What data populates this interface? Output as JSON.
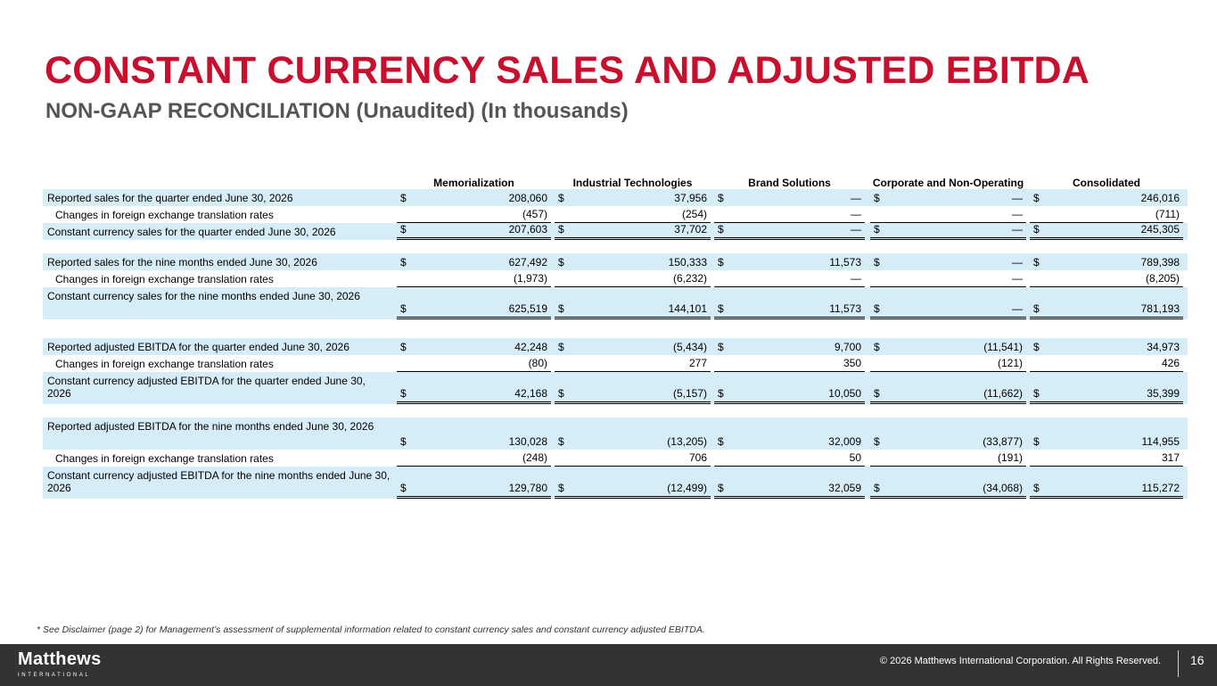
{
  "title": "CONSTANT CURRENCY SALES AND ADJUSTED EBITDA",
  "subtitle": "NON-GAAP RECONCILIATION (Unaudited) (In thousands)",
  "table": {
    "columns": [
      "Memorialization",
      "Industrial Technologies",
      "Brand Solutions",
      "Corporate and Non-Operating",
      "Consolidated"
    ],
    "rows": [
      {
        "label": "Reported sales for the quarter ended June 30, 2026",
        "values": [
          "208,060",
          "37,956",
          "—",
          "—",
          "246,016"
        ]
      },
      {
        "label": "Changes in foreign exchange translation rates",
        "values": [
          "(457)",
          "(254)",
          "—",
          "—",
          "(711)"
        ]
      },
      {
        "label": "Constant currency sales for the quarter ended June 30, 2026",
        "values": [
          "207,603",
          "37,702",
          "—",
          "—",
          "245,305"
        ]
      },
      {
        "label": "Reported sales for the nine months ended June 30, 2026",
        "values": [
          "627,492",
          "150,333",
          "11,573",
          "—",
          "789,398"
        ]
      },
      {
        "label": "Changes in foreign exchange translation rates",
        "values": [
          "(1,973)",
          "(6,232)",
          "—",
          "—",
          "(8,205)"
        ]
      },
      {
        "label": "Constant currency sales for the nine months ended June 30, 2026",
        "values": [
          "625,519",
          "144,101",
          "11,573",
          "—",
          "781,193"
        ]
      },
      {
        "label": "Reported adjusted EBITDA for the quarter ended June 30, 2026",
        "values": [
          "42,248",
          "(5,434)",
          "9,700",
          "(11,541)",
          "34,973"
        ]
      },
      {
        "label": "Changes in foreign exchange translation rates",
        "values": [
          "(80)",
          "277",
          "350",
          "(121)",
          "426"
        ]
      },
      {
        "label": "Constant currency adjusted EBITDA for the quarter ended June 30, 2026",
        "values": [
          "42,168",
          "(5,157)",
          "10,050",
          "(11,662)",
          "35,399"
        ]
      },
      {
        "label": "Reported adjusted EBITDA for the nine months ended June 30, 2026",
        "values": [
          "130,028",
          "(13,205)",
          "32,009",
          "(33,877)",
          "114,955"
        ]
      },
      {
        "label": "Changes in foreign exchange translation rates",
        "values": [
          "(248)",
          "706",
          "50",
          "(191)",
          "317"
        ]
      },
      {
        "label": "Constant currency adjusted EBITDA for the nine months ended June 30, 2026",
        "values": [
          "129,780",
          "(12,499)",
          "32,059",
          "(34,068)",
          "115,272"
        ]
      }
    ]
  },
  "currency_symbol": "$",
  "footnote": "* See Disclaimer (page 2) for Management’s assessment of supplemental information related to constant currency sales and constant currency adjusted EBITDA.",
  "footer": {
    "logo_name": "Matthews",
    "logo_sub": "INTERNATIONAL",
    "copyright": "© 2026 Matthews International Corporation. All Rights Reserved.",
    "page_number": "16"
  },
  "colors": {
    "title": "#c8102e",
    "subtitle": "#555555",
    "row_shade": "#d6ecf7",
    "footer_bar": "#333333"
  }
}
